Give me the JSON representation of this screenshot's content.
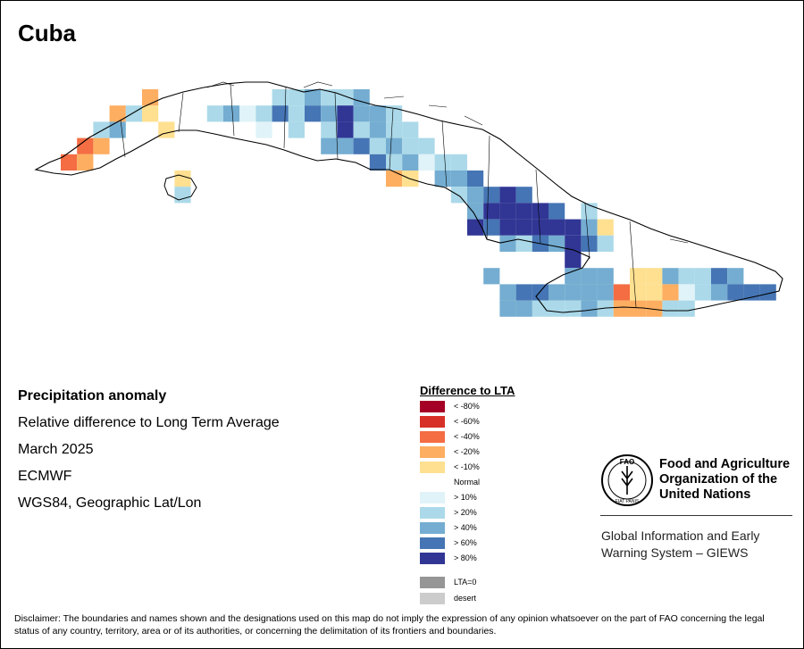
{
  "map_title": "Cuba",
  "info": {
    "title": "Precipitation anomaly",
    "subtitle": "Relative difference to Long Term Average",
    "date": "March 2025",
    "model": "ECMWF",
    "projection": "WGS84, Geographic Lat/Lon"
  },
  "legend": {
    "title": "Difference to LTA",
    "items": [
      {
        "label": "< -80%",
        "color": "#a50026"
      },
      {
        "label": "< -60%",
        "color": "#d73027"
      },
      {
        "label": "< -40%",
        "color": "#f46d43"
      },
      {
        "label": "< -20%",
        "color": "#fdae61"
      },
      {
        "label": "< -10%",
        "color": "#fee090"
      },
      {
        "label": "Normal",
        "color": "#ffffff"
      },
      {
        "label": "> 10%",
        "color": "#e0f3f8"
      },
      {
        "label": "> 20%",
        "color": "#abd9e9"
      },
      {
        "label": "> 40%",
        "color": "#74add1"
      },
      {
        "label": "> 60%",
        "color": "#4575b4"
      },
      {
        "label": "> 80%",
        "color": "#313695"
      }
    ],
    "extra": [
      {
        "label": "LTA=0",
        "color": "#969696"
      },
      {
        "label": "desert",
        "color": "#cccccc"
      }
    ]
  },
  "organization": {
    "name_line1": "Food and Agriculture",
    "name_line2": "Organization of the",
    "name_line3": "United Nations",
    "logo_letters": "FAO",
    "motto": "FIAT PANIS",
    "system_line1": "Global Information and Early",
    "system_line2": "Warning System – GIEWS"
  },
  "disclaimer": "Disclaimer: The boundaries and names shown and the designations used on this map do not imply the expression of any opinion whatsoever on the part of FAO concerning the legal status of any country, territory, area or of its authorities, or concerning the delimitation of its frontiers and boundaries."
}
